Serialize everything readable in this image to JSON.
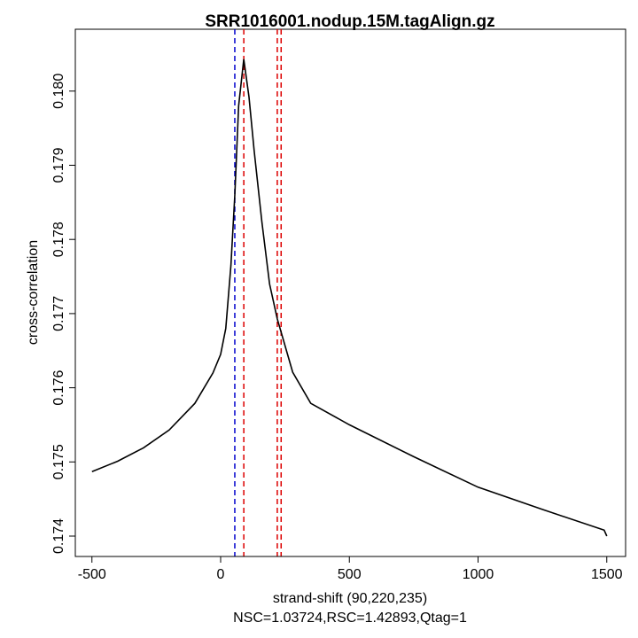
{
  "chart_data": {
    "type": "line",
    "title": "SRR1016001.nodup.15M.tagAlign.gz",
    "xlabel": "strand-shift (90,220,235)",
    "subtitle": "NSC=1.03724,RSC=1.42893,Qtag=1",
    "ylabel": "cross-correlation",
    "xlim": [
      -500,
      1500
    ],
    "ylim": [
      0.17385,
      0.18058
    ],
    "x_ticks": [
      "-500",
      "0",
      "500",
      "1000",
      "1500"
    ],
    "x_tick_values": [
      -500,
      0,
      500,
      1000,
      1500
    ],
    "y_ticks": [
      "0.174",
      "0.175",
      "0.176",
      "0.177",
      "0.178",
      "0.179",
      "0.180"
    ],
    "y_tick_values": [
      0.174,
      0.175,
      0.176,
      0.177,
      0.178,
      0.179,
      0.18
    ],
    "grid": false,
    "series": [
      {
        "name": "cross-correlation",
        "color": "#000000",
        "x": [
          -500,
          -400,
          -300,
          -200,
          -100,
          -30,
          0,
          20,
          40,
          55,
          70,
          90,
          110,
          130,
          160,
          190,
          220,
          240,
          280,
          350,
          500,
          750,
          1000,
          1250,
          1490,
          1500
        ],
        "y": [
          0.17487,
          0.17501,
          0.17519,
          0.17543,
          0.17579,
          0.1762,
          0.17645,
          0.1768,
          0.17765,
          0.1786,
          0.1798,
          0.18043,
          0.17992,
          0.1792,
          0.17824,
          0.1774,
          0.17693,
          0.17669,
          0.17621,
          0.17579,
          0.1755,
          0.17507,
          0.17466,
          0.17436,
          0.17408,
          0.174
        ]
      }
    ],
    "vlines": [
      {
        "x": 55,
        "color": "#0000cc"
      },
      {
        "x": 90,
        "color": "#dd0000"
      },
      {
        "x": 220,
        "color": "#dd0000"
      },
      {
        "x": 235,
        "color": "#dd0000"
      }
    ]
  }
}
